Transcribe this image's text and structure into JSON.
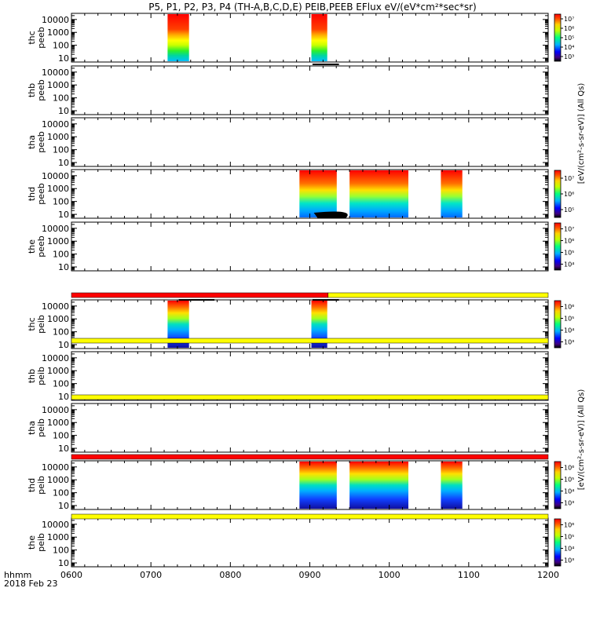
{
  "chart_data": {
    "type": "heatmap",
    "title": "P5, P1, P2, P3, P4 (TH-A,B,C,D,E) PEIB,PEEB EFlux eV/(eV*cm²*sec*sr)",
    "x_ticks": [
      "0600",
      "0700",
      "0800",
      "0900",
      "1000",
      "1100",
      "1200"
    ],
    "x_range": [
      "0600",
      "1200"
    ],
    "x_label": "hhmm",
    "date_label": "2018 Feb 23",
    "y_ticks": [
      "10",
      "100",
      "1000",
      "10000"
    ],
    "y_range": [
      5,
      30000
    ],
    "y_scale": "log",
    "colorbar_labels": {
      "peeb": "[eV/(cm²-s-sr-eV)] (All Qs)",
      "peib": "[eV/(cm²-s-sr-eV)] (All Qs)"
    },
    "panels": [
      {
        "probe": "thc",
        "instrument": "peeb",
        "label": "thc\npeeb",
        "blocks": [
          [
            "0721",
            "0748"
          ],
          [
            "0902",
            "0922"
          ]
        ],
        "colorbar": {
          "ticks": [
            "10³",
            "10⁴",
            "10⁵",
            "10⁶",
            "10⁷"
          ]
        }
      },
      {
        "probe": "thb",
        "instrument": "peeb",
        "label": "thb\npeeb",
        "blocks": []
      },
      {
        "probe": "tha",
        "instrument": "peeb",
        "label": "tha\npeeb",
        "blocks": []
      },
      {
        "probe": "thd",
        "instrument": "peeb",
        "label": "thd\npeeb",
        "blocks": [
          [
            "0887",
            "0934"
          ],
          [
            "0950",
            "1024"
          ],
          [
            "1065",
            "1092"
          ]
        ],
        "colorbar": {
          "ticks": [
            "10⁵",
            "10⁶",
            "10⁷"
          ]
        }
      },
      {
        "probe": "the",
        "instrument": "peeb",
        "label": "the\npeeb",
        "blocks": [],
        "colorbar": {
          "ticks": [
            "10⁴",
            "10⁵",
            "10⁶",
            "10⁷"
          ]
        }
      },
      {
        "probe": "thc",
        "instrument": "peib",
        "label": "thc\npeib",
        "blocks": [
          [
            "0721",
            "0748"
          ],
          [
            "0902",
            "0922"
          ]
        ],
        "colorbar": {
          "ticks": [
            "10³",
            "10⁴",
            "10⁵",
            "10⁶"
          ]
        }
      },
      {
        "probe": "thb",
        "instrument": "peib",
        "label": "thb\npeib",
        "blocks": []
      },
      {
        "probe": "tha",
        "instrument": "peib",
        "label": "tha\npeib",
        "blocks": []
      },
      {
        "probe": "thd",
        "instrument": "peib",
        "label": "thd\npeib",
        "blocks": [
          [
            "0887",
            "0934"
          ],
          [
            "0950",
            "1024"
          ],
          [
            "1065",
            "1092"
          ]
        ],
        "colorbar": {
          "ticks": [
            "10³",
            "10⁴",
            "10⁵",
            "10⁶"
          ]
        }
      },
      {
        "probe": "the",
        "instrument": "peib",
        "label": "the\npeib",
        "blocks": [],
        "colorbar": {
          "ticks": [
            "10³",
            "10⁴",
            "10⁵",
            "10⁶"
          ]
        }
      }
    ],
    "mode_bars": [
      {
        "after_panel": 4,
        "segments": [
          {
            "from": "0600",
            "to": "0923",
            "color": "#ff0000"
          },
          {
            "from": "0923",
            "to": "1200",
            "color": "#ffff00"
          }
        ]
      },
      {
        "after_panel": 5,
        "segments": [
          {
            "from": "0600",
            "to": "1200",
            "color": "#ffff00"
          }
        ]
      },
      {
        "after_panel": 6,
        "segments": [
          {
            "from": "0600",
            "to": "1200",
            "color": "#ffff00"
          }
        ]
      },
      {
        "after_panel": 7,
        "segments": [
          {
            "from": "0600",
            "to": "1200",
            "color": "#ff0000"
          }
        ]
      },
      {
        "after_panel": 8,
        "segments": [
          {
            "from": "0600",
            "to": "1200",
            "color": "#ffff00"
          }
        ]
      }
    ]
  }
}
